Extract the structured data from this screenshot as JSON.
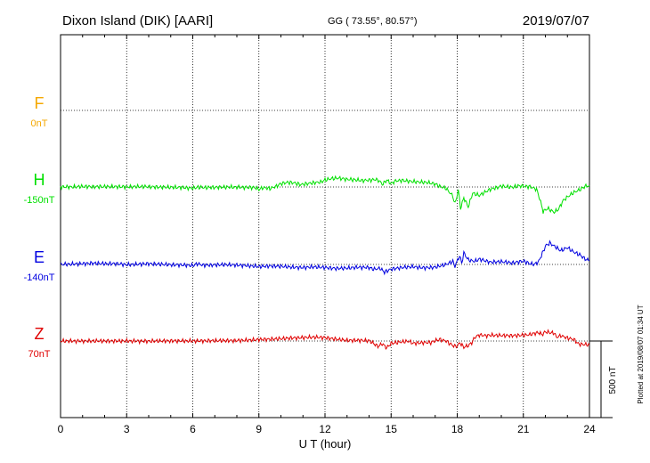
{
  "header": {
    "station": "Dixon Island (DIK)  [AARI]",
    "coords": "GG ( 73.55°,  80.57°)",
    "date": "2019/07/07"
  },
  "footer": {
    "plotted_note": "Plotted at 2019/08/07 01:34 UT",
    "scale_label": "500 nT"
  },
  "chart_data": {
    "type": "line",
    "xlabel": "U T (hour)",
    "xlim": [
      0,
      24
    ],
    "x_ticks": [
      0,
      3,
      6,
      9,
      12,
      15,
      18,
      21,
      24
    ],
    "grid": true,
    "scale_bar_nT": 500,
    "series": [
      {
        "name": "F",
        "offset_label": "0nT",
        "color": "#f5a800",
        "values": []
      },
      {
        "name": "H",
        "offset_label": "-150nT",
        "color": "#00e000",
        "values": [
          [
            0,
            1
          ],
          [
            0.5,
            0
          ],
          [
            1,
            3
          ],
          [
            1.5,
            2
          ],
          [
            2,
            2
          ],
          [
            2.5,
            2
          ],
          [
            3,
            1
          ],
          [
            3.5,
            2
          ],
          [
            4,
            2
          ],
          [
            4.5,
            -1
          ],
          [
            5,
            -2
          ],
          [
            5.5,
            -3
          ],
          [
            6,
            -8
          ],
          [
            6.2,
            -2
          ],
          [
            6.5,
            -4
          ],
          [
            7,
            -2
          ],
          [
            7.5,
            -1
          ],
          [
            8,
            -1
          ],
          [
            8.5,
            -3
          ],
          [
            8.8,
            -3
          ],
          [
            9,
            -16
          ],
          [
            9.2,
            -4
          ],
          [
            9.5,
            -10
          ],
          [
            9.8,
            5
          ],
          [
            10,
            22
          ],
          [
            10.3,
            30
          ],
          [
            10.6,
            27
          ],
          [
            10.9,
            15
          ],
          [
            11.2,
            22
          ],
          [
            11.5,
            28
          ],
          [
            11.8,
            32
          ],
          [
            12,
            45
          ],
          [
            12.3,
            55
          ],
          [
            12.6,
            58
          ],
          [
            13,
            50
          ],
          [
            13.3,
            47
          ],
          [
            13.7,
            42
          ],
          [
            14,
            45
          ],
          [
            14.3,
            49
          ],
          [
            14.5,
            38
          ],
          [
            14.6,
            15
          ],
          [
            14.8,
            45
          ],
          [
            15,
            22
          ],
          [
            15.2,
            40
          ],
          [
            15.5,
            43
          ],
          [
            16,
            35
          ],
          [
            16.3,
            32
          ],
          [
            16.6,
            30
          ],
          [
            17,
            20
          ],
          [
            17.2,
            5
          ],
          [
            17.5,
            -10
          ],
          [
            17.8,
            -60
          ],
          [
            17.9,
            -110
          ],
          [
            18.05,
            -20
          ],
          [
            18.15,
            -140
          ],
          [
            18.3,
            -70
          ],
          [
            18.5,
            -130
          ],
          [
            18.7,
            -40
          ],
          [
            19,
            -55
          ],
          [
            19.5,
            -15
          ],
          [
            20,
            5
          ],
          [
            20.5,
            -2
          ],
          [
            20.8,
            8
          ],
          [
            21,
            5
          ],
          [
            21.3,
            2
          ],
          [
            21.6,
            -15
          ],
          [
            21.75,
            -80
          ],
          [
            21.9,
            -160
          ],
          [
            22.1,
            -140
          ],
          [
            22.4,
            -165
          ],
          [
            22.6,
            -145
          ],
          [
            22.8,
            -90
          ],
          [
            23,
            -65
          ],
          [
            23.3,
            -35
          ],
          [
            23.6,
            -15
          ],
          [
            23.8,
            5
          ],
          [
            24,
            10
          ]
        ]
      },
      {
        "name": "E",
        "offset_label": "-140nT",
        "color": "#0000e0",
        "values": [
          [
            0,
            0
          ],
          [
            0.5,
            2
          ],
          [
            1,
            5
          ],
          [
            1.5,
            8
          ],
          [
            2,
            4
          ],
          [
            2.5,
            6
          ],
          [
            3,
            -2
          ],
          [
            3.5,
            1
          ],
          [
            4,
            5
          ],
          [
            4.5,
            1
          ],
          [
            5,
            -2
          ],
          [
            5.5,
            -3
          ],
          [
            6,
            -8
          ],
          [
            6.2,
            4
          ],
          [
            6.5,
            -5
          ],
          [
            7,
            -3
          ],
          [
            7.5,
            -2
          ],
          [
            8,
            -4
          ],
          [
            8.5,
            -8
          ],
          [
            9,
            -14
          ],
          [
            9.5,
            -10
          ],
          [
            10,
            -12
          ],
          [
            10.5,
            -18
          ],
          [
            11,
            -20
          ],
          [
            11.5,
            -16
          ],
          [
            12,
            -20
          ],
          [
            12.5,
            -26
          ],
          [
            13,
            -24
          ],
          [
            13.5,
            -18
          ],
          [
            14,
            -20
          ],
          [
            14.2,
            -32
          ],
          [
            14.5,
            -25
          ],
          [
            14.7,
            -50
          ],
          [
            15,
            -30
          ],
          [
            15.5,
            -20
          ],
          [
            16,
            -15
          ],
          [
            16.5,
            -22
          ],
          [
            17,
            -18
          ],
          [
            17.5,
            0
          ],
          [
            17.8,
            20
          ],
          [
            17.9,
            -10
          ],
          [
            18.1,
            55
          ],
          [
            18.2,
            10
          ],
          [
            18.3,
            75
          ],
          [
            18.5,
            30
          ],
          [
            18.8,
            20
          ],
          [
            19,
            35
          ],
          [
            19.5,
            15
          ],
          [
            20,
            18
          ],
          [
            20.5,
            10
          ],
          [
            21,
            22
          ],
          [
            21.3,
            5
          ],
          [
            21.5,
            0
          ],
          [
            21.7,
            20
          ],
          [
            21.9,
            85
          ],
          [
            22,
            120
          ],
          [
            22.2,
            140
          ],
          [
            22.5,
            110
          ],
          [
            22.7,
            90
          ],
          [
            23,
            110
          ],
          [
            23.3,
            80
          ],
          [
            23.6,
            60
          ],
          [
            23.8,
            35
          ],
          [
            24,
            25
          ]
        ]
      },
      {
        "name": "Z",
        "offset_label": "70nT",
        "color": "#e00000",
        "values": [
          [
            0,
            0
          ],
          [
            1,
            0
          ],
          [
            2,
            0
          ],
          [
            3,
            0
          ],
          [
            4,
            -1
          ],
          [
            5,
            1
          ],
          [
            6,
            0
          ],
          [
            7,
            2
          ],
          [
            8,
            3
          ],
          [
            8.5,
            5
          ],
          [
            9,
            10
          ],
          [
            9.5,
            12
          ],
          [
            10,
            15
          ],
          [
            10.5,
            20
          ],
          [
            11,
            22
          ],
          [
            11.5,
            25
          ],
          [
            12,
            22
          ],
          [
            12.5,
            12
          ],
          [
            13,
            4
          ],
          [
            13.5,
            5
          ],
          [
            14,
            2
          ],
          [
            14.2,
            -15
          ],
          [
            14.4,
            -35
          ],
          [
            14.6,
            -18
          ],
          [
            14.8,
            -45
          ],
          [
            15,
            -15
          ],
          [
            15.2,
            -12
          ],
          [
            15.5,
            -5
          ],
          [
            15.8,
            -2
          ],
          [
            16,
            -15
          ],
          [
            16.5,
            -10
          ],
          [
            16.8,
            -10
          ],
          [
            17,
            2
          ],
          [
            17.2,
            10
          ],
          [
            17.5,
            0
          ],
          [
            17.8,
            -30
          ],
          [
            18,
            -35
          ],
          [
            18.1,
            -10
          ],
          [
            18.3,
            -40
          ],
          [
            18.5,
            -30
          ],
          [
            18.7,
            -5
          ],
          [
            18.8,
            25
          ],
          [
            19,
            40
          ],
          [
            19.3,
            35
          ],
          [
            19.5,
            38
          ],
          [
            20,
            36
          ],
          [
            20.5,
            35
          ],
          [
            21,
            38
          ],
          [
            21.3,
            42
          ],
          [
            21.5,
            50
          ],
          [
            21.7,
            55
          ],
          [
            21.85,
            42
          ],
          [
            22,
            60
          ],
          [
            22.2,
            55
          ],
          [
            22.4,
            52
          ],
          [
            22.5,
            25
          ],
          [
            22.7,
            35
          ],
          [
            23,
            20
          ],
          [
            23.3,
            10
          ],
          [
            23.5,
            -20
          ],
          [
            24,
            -25
          ]
        ]
      }
    ]
  }
}
